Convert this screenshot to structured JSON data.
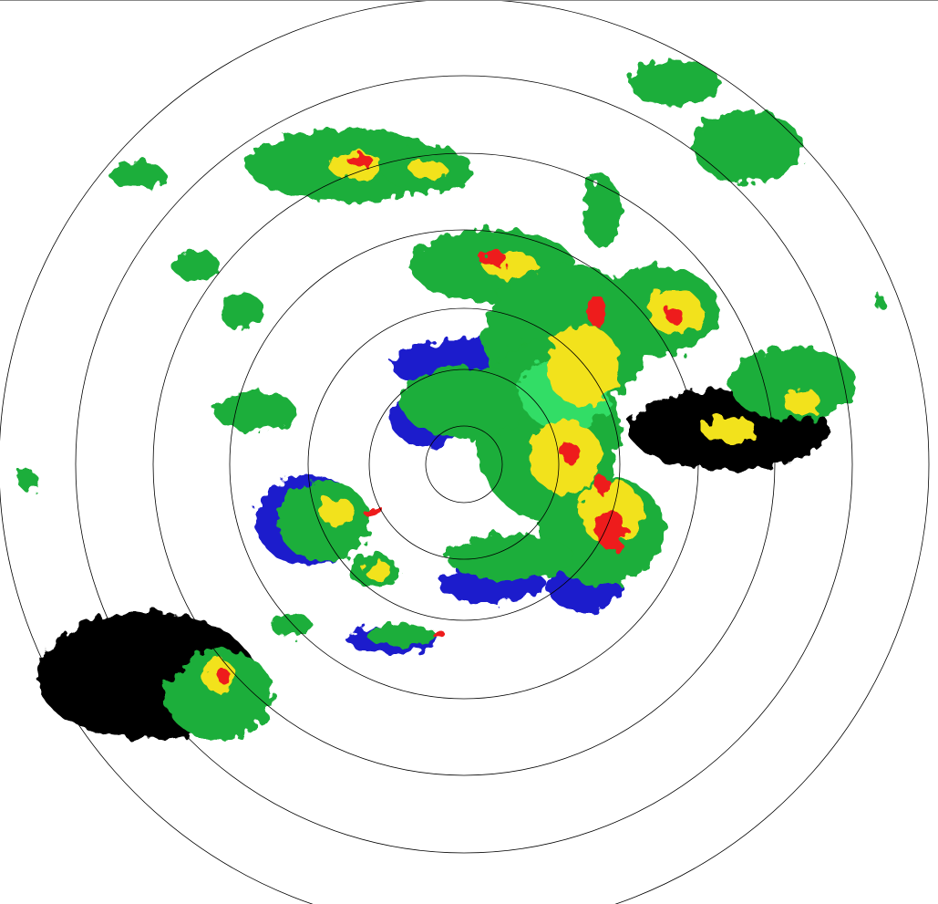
{
  "radar": {
    "range_ring_count": 7,
    "ring_color": "#000000",
    "background_color": "#ffffff",
    "reflectivity_colors": {
      "weak_blue": "#1a1acc",
      "light_green": "#33dd66",
      "green": "#1fae3a",
      "teal": "#22ccaa",
      "yellow": "#f2e21a",
      "orange": "#ff9a1a",
      "red": "#ee1a1a"
    }
  }
}
